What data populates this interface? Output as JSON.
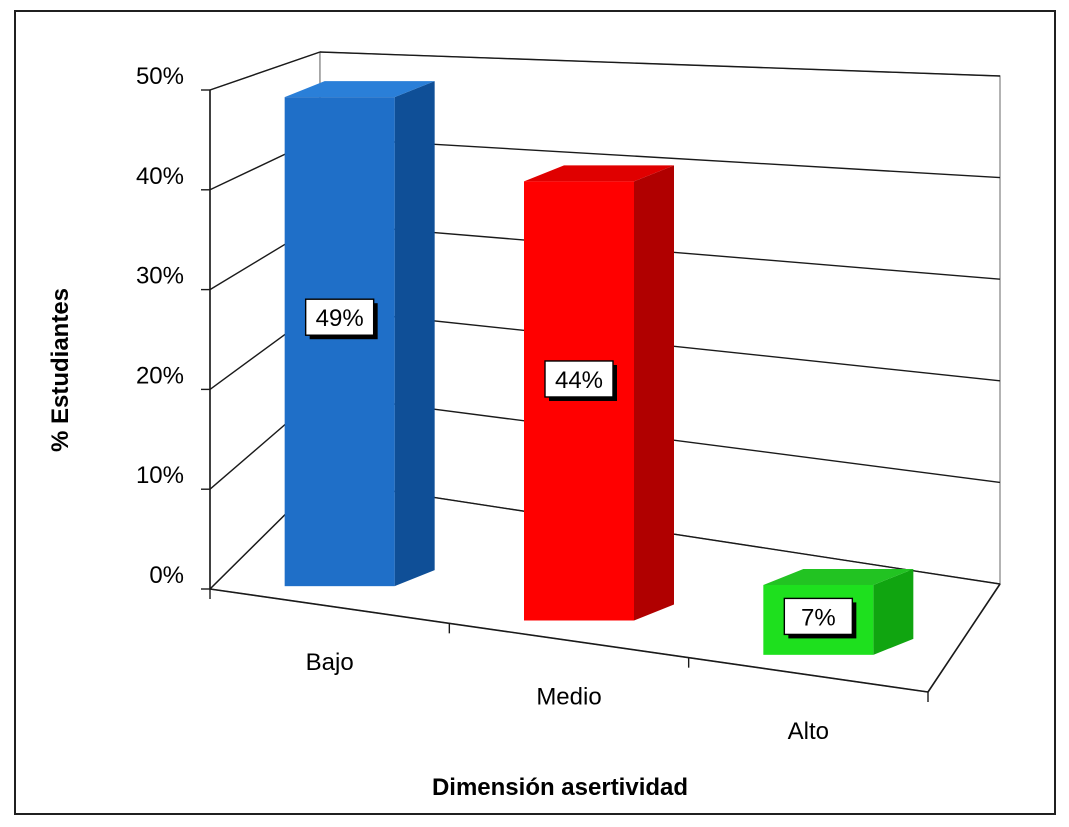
{
  "chart_data": {
    "type": "bar",
    "view": "3d",
    "categories": [
      "Bajo",
      "Medio",
      "Alto"
    ],
    "values": [
      49,
      44,
      7
    ],
    "data_labels": [
      "49%",
      "44%",
      "7%"
    ],
    "colors": [
      "#1f6fc8",
      "#ff0000",
      "#1ee01e"
    ],
    "side_colors": [
      "#0f4f97",
      "#b00000",
      "#10a510"
    ],
    "top_colors": [
      "#2a7fd8",
      "#e00000",
      "#22c322"
    ],
    "yticks": [
      "0%",
      "10%",
      "20%",
      "30%",
      "40%",
      "50%"
    ],
    "ylim": [
      0,
      50
    ],
    "xlabel": "Dimensión asertividad",
    "ylabel": "% Estudiantes",
    "grid": true,
    "legend": false
  }
}
